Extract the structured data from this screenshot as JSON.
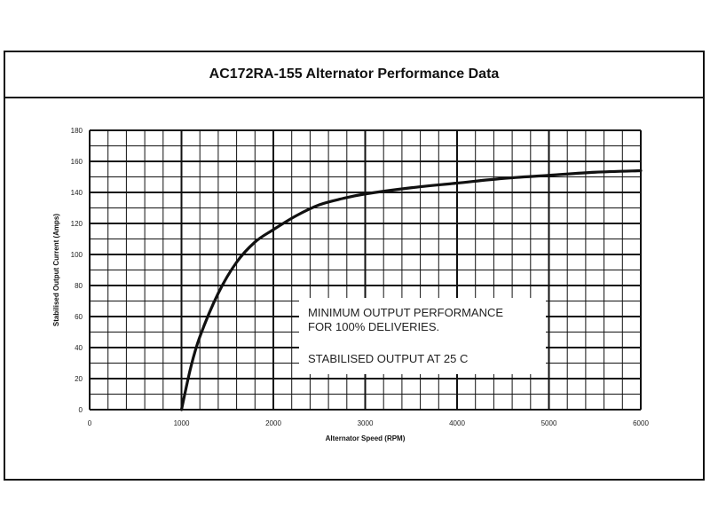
{
  "title": "AC172RA-155 Alternator Performance Data",
  "chart_data": {
    "type": "line",
    "title": "AC172RA-155 Alternator Performance Data",
    "xlabel": "Alternator Speed (RPM)",
    "ylabel": "Stabilised Output Current (Amps)",
    "xlim": [
      0,
      6000
    ],
    "ylim": [
      0,
      180
    ],
    "x_ticks": [
      "0",
      "1000",
      "2000",
      "3000",
      "4000",
      "5000",
      "6000"
    ],
    "y_ticks": [
      "0",
      "20",
      "40",
      "60",
      "80",
      "100",
      "120",
      "140",
      "160",
      "180"
    ],
    "grid": true,
    "x": [
      1000,
      1100,
      1200,
      1400,
      1600,
      1800,
      2000,
      2250,
      2500,
      2750,
      3000,
      3500,
      4000,
      4500,
      5000,
      5500,
      6000
    ],
    "y": [
      0,
      27,
      47,
      75,
      95,
      108,
      116,
      125,
      132,
      136,
      139,
      143,
      146,
      149,
      151,
      153,
      154
    ],
    "annotations": [
      "MINIMUM OUTPUT PERFORMANCE",
      "FOR 100% DELIVERIES.",
      "STABILISED OUTPUT AT 25 C"
    ]
  }
}
